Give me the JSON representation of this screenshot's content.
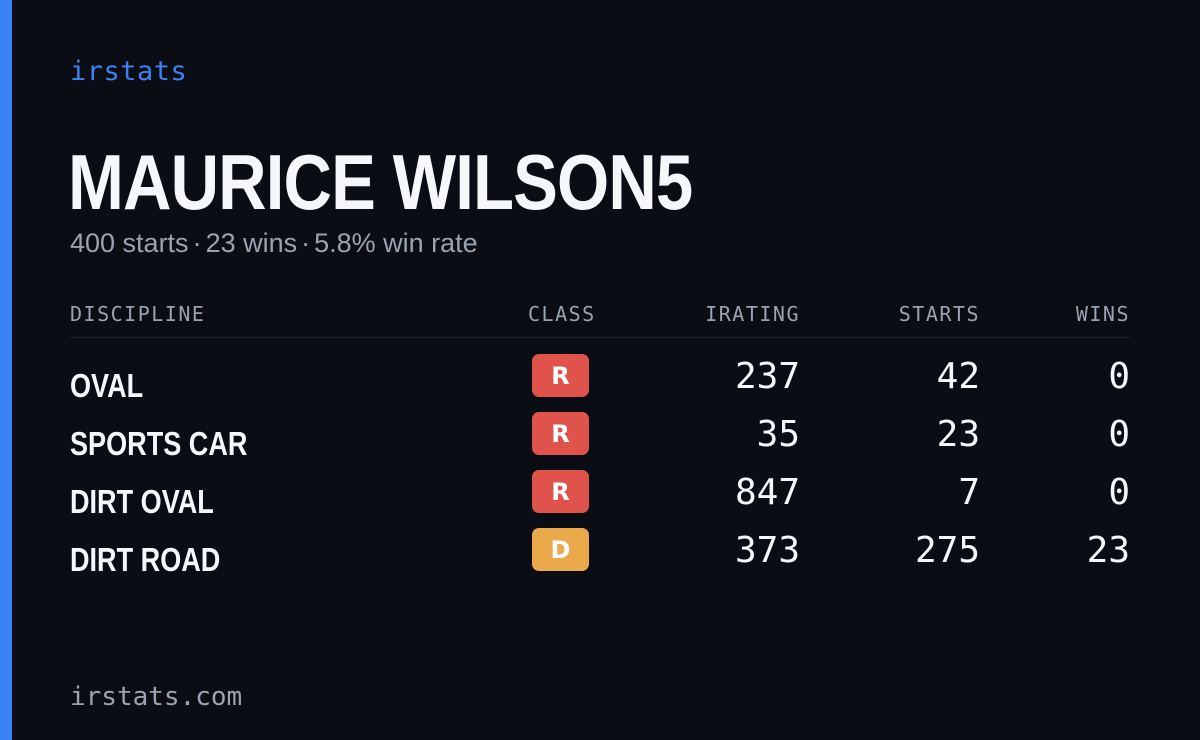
{
  "colors": {
    "accent": "#3b82f6",
    "background": "#0a0d14",
    "class_R": "#e0524c",
    "class_D": "#eaa94b"
  },
  "brand": {
    "label": "irstats"
  },
  "driver": {
    "name": "MAURICE WILSON5",
    "starts_text": "400 starts",
    "wins_text": "23 wins",
    "win_rate_text": "5.8% win rate",
    "separator": "·"
  },
  "table": {
    "headers": {
      "discipline": "DISCIPLINE",
      "class": "CLASS",
      "irating": "IRATING",
      "starts": "STARTS",
      "wins": "WINS"
    },
    "rows": [
      {
        "discipline": "OVAL",
        "class": "R",
        "irating": "237",
        "starts": "42",
        "wins": "0"
      },
      {
        "discipline": "SPORTS CAR",
        "class": "R",
        "irating": "35",
        "starts": "23",
        "wins": "0"
      },
      {
        "discipline": "DIRT OVAL",
        "class": "R",
        "irating": "847",
        "starts": "7",
        "wins": "0"
      },
      {
        "discipline": "DIRT ROAD",
        "class": "D",
        "irating": "373",
        "starts": "275",
        "wins": "23"
      }
    ]
  },
  "footer": {
    "url": "irstats.com"
  }
}
